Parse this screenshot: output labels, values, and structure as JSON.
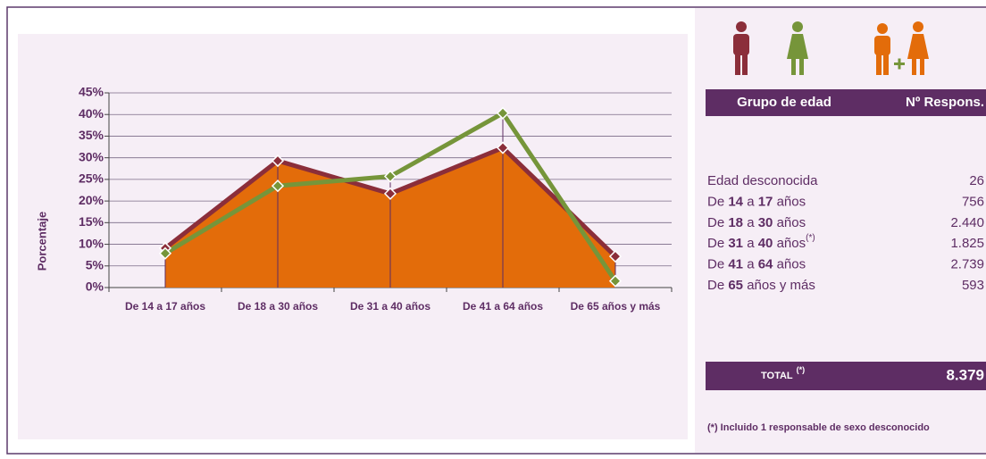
{
  "chart_data": {
    "type": "area-line",
    "y_label": "Porcentaje",
    "categories": [
      "De 14 a 17 años",
      "De 18 a 30 años",
      "De 31 a 40 años",
      "De 41 a 64 años",
      "De 65 años y más"
    ],
    "series": [
      {
        "color": "#e36c0a",
        "values": [
          9.0,
          29.1,
          21.8,
          32.7,
          7.1
        ]
      },
      {
        "color": "#8b2e3a",
        "values": [
          9.1,
          29.3,
          21.7,
          32.3,
          7.2
        ]
      },
      {
        "color": "#76953a",
        "values": [
          7.9,
          23.5,
          25.7,
          40.3,
          1.5
        ]
      }
    ],
    "ylim": [
      0,
      45
    ],
    "yticks": [
      {
        "value": 0,
        "label": "0%"
      },
      {
        "value": 5,
        "label": "5%"
      },
      {
        "value": 10,
        "label": "10%"
      },
      {
        "value": 15,
        "label": "15%"
      },
      {
        "value": 20,
        "label": "20%"
      },
      {
        "value": 25,
        "label": "25%"
      },
      {
        "value": 30,
        "label": "30%"
      },
      {
        "value": 35,
        "label": "35%"
      },
      {
        "value": 40,
        "label": "40%"
      },
      {
        "value": 45,
        "label": "45%"
      }
    ],
    "grid": true
  },
  "table": {
    "header": [
      "Grupo de edad",
      "Nº Respons."
    ],
    "rows": [
      {
        "label": [
          "Edad desconocida"
        ],
        "value": "26"
      },
      {
        "label": [
          "De ",
          "14",
          " a ",
          "17",
          " años"
        ],
        "value": "756"
      },
      {
        "label": [
          "De ",
          "18",
          " a ",
          "30",
          " años"
        ],
        "value": "2.440"
      },
      {
        "label": [
          "De ",
          "31",
          " a ",
          "40",
          " años"
        ],
        "note": "(*)",
        "value": "1.825"
      },
      {
        "label": [
          "De ",
          "41",
          " a ",
          "64",
          " años"
        ],
        "value": "2.739"
      },
      {
        "label": [
          "De ",
          "65",
          " años y más"
        ],
        "value": "593"
      }
    ],
    "total": {
      "label": "TOTAL",
      "note": "(*)",
      "value": "8.379"
    }
  },
  "footnote": "(*) Incluido 1 responsable de sexo desconocido"
}
